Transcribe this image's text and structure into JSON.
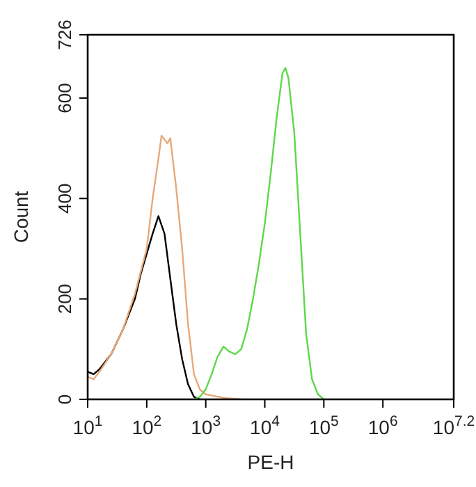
{
  "chart_data": {
    "type": "line",
    "xlabel": "PE-H",
    "ylabel": "Count",
    "log": "x",
    "grid": false,
    "marker": "none",
    "line_style": "solid",
    "xlim": [
      10,
      15848932
    ],
    "ylim": [
      0,
      726
    ],
    "xticks": [
      {
        "value": 10,
        "label": "10$^{1}$"
      },
      {
        "value": 100,
        "label": "10$^{2}$"
      },
      {
        "value": 1000,
        "label": "10$^{3}$"
      },
      {
        "value": 10000,
        "label": "10$^{4}$"
      },
      {
        "value": 100000,
        "label": "10$^{5}$"
      },
      {
        "value": 1000000,
        "label": "10$^{6}$"
      },
      {
        "value": 15848932,
        "label": "10$^{7.2}$"
      }
    ],
    "yticks": [
      0,
      200,
      400,
      600,
      726
    ],
    "series": [
      {
        "color": "#000000",
        "x": [
          10,
          12.6,
          15.8,
          25.1,
          39.8,
          63.1,
          79.4,
          100,
          126,
          158,
          200,
          251,
          316,
          398,
          501,
          631,
          794
        ],
        "values": [
          55,
          50,
          60,
          90,
          140,
          200,
          250,
          290,
          330,
          365,
          330,
          240,
          150,
          80,
          30,
          5,
          0
        ]
      },
      {
        "color": "#e8a878",
        "x": [
          10,
          12.6,
          15.8,
          25.1,
          39.8,
          63.1,
          100,
          126,
          158,
          178,
          224,
          251,
          316,
          398,
          501,
          631,
          794,
          1000,
          1995,
          3981
        ],
        "values": [
          45,
          40,
          55,
          90,
          140,
          210,
          300,
          400,
          480,
          525,
          510,
          520,
          420,
          300,
          150,
          50,
          20,
          10,
          3,
          0
        ]
      },
      {
        "color": "#5ed84a",
        "x": [
          631,
          794,
          1000,
          1259,
          1585,
          1995,
          2512,
          3162,
          3981,
          5012,
          6310,
          7943,
          10000,
          12589,
          15849,
          19953,
          22387,
          25119,
          31623,
          39811,
          50119,
          63096,
          79433,
          100000
        ],
        "values": [
          0,
          5,
          20,
          50,
          85,
          105,
          95,
          90,
          100,
          140,
          200,
          270,
          350,
          450,
          560,
          650,
          660,
          640,
          530,
          330,
          130,
          40,
          10,
          0
        ]
      }
    ]
  }
}
